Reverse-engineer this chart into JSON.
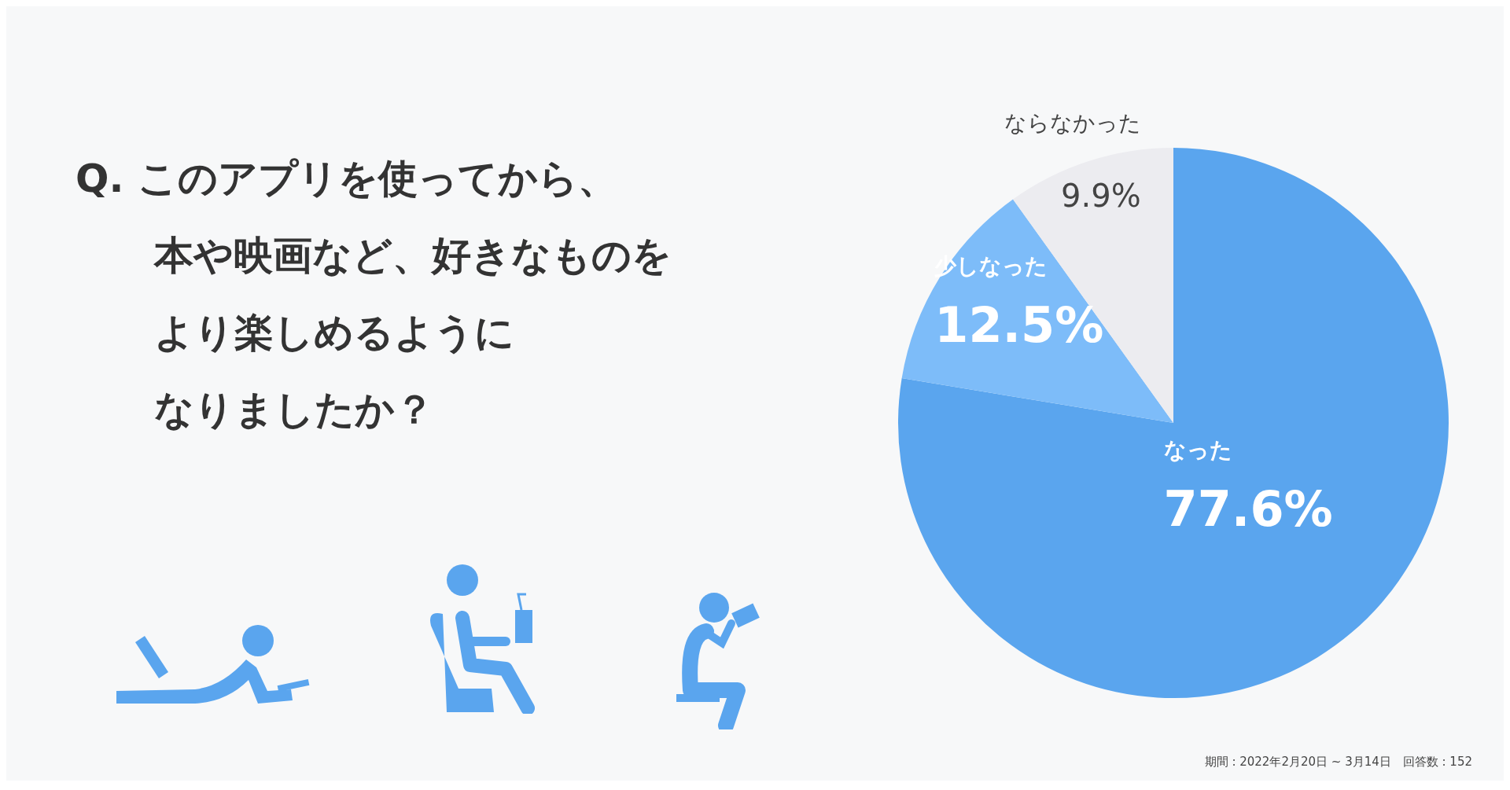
{
  "chart_data": {
    "type": "pie",
    "title": "Q. このアプリを使ってから、本や映画など、好きなものをより楽しめるようになりましたか？",
    "categories": [
      "なった",
      "少しなった",
      "ならなかった"
    ],
    "values": [
      77.6,
      12.5,
      9.9
    ],
    "colors": [
      "#5aa5ee",
      "#7dbcf9",
      "#ececf0"
    ],
    "value_labels": [
      "77.6%",
      "12.5%",
      "9.9%"
    ],
    "legend": false,
    "annotations": [
      "期間 : 2022年2月20日 ~ 3月14日　回答数 : 152"
    ]
  }
}
